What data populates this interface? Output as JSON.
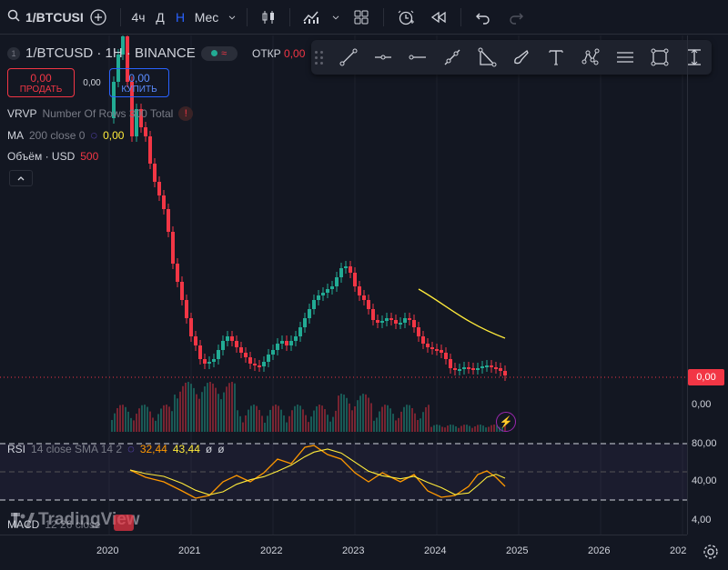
{
  "topbar": {
    "symbol": "1/BTCUSI",
    "intervals": [
      "4ч",
      "Д",
      "Н",
      "Мес"
    ],
    "active_interval": "Н",
    "icons": [
      "search-icon",
      "add-symbol-icon",
      "candles-icon",
      "indicators-icon",
      "chevron-down-icon",
      "templates-icon",
      "alert-icon",
      "replay-icon",
      "undo-icon",
      "redo-icon"
    ]
  },
  "legend": {
    "badge": "1",
    "title": "1/BTCUSD · 1H · BINANCE",
    "ohlc_key": "ОТКР",
    "ohlc_value": "0,00"
  },
  "trade": {
    "sell_price": "0,00",
    "sell_label": "ПРОДАТЬ",
    "spread": "0,00",
    "buy_price": "0,00",
    "buy_label": "КУПИТЬ"
  },
  "indicators": {
    "vrvp_name": "VRVP",
    "vrvp_params": "Number Of Rows 300 Total",
    "ma_name": "MA",
    "ma_params": "200 close 0",
    "ma_value": "0,00",
    "vol_name": "Объём · USD",
    "vol_value": "500"
  },
  "rsi": {
    "name": "RSI",
    "params": "14 close SMA 14 2",
    "value1": "32,44",
    "value2": "43,44",
    "value3": "ø",
    "value4": "ø"
  },
  "macd": {
    "name": "MACD",
    "params": "12 26 close"
  },
  "watermark": "TradingView",
  "price_scale": {
    "current_tag": "0,00",
    "volume_tag": "0,00",
    "vol_label": "0,00",
    "rsi_labels": [
      "80,00",
      "40,00"
    ],
    "macd_label": "4,00"
  },
  "time_scale": [
    "2020",
    "2021",
    "2022",
    "2023",
    "2024",
    "2025",
    "2026",
    "202"
  ],
  "colors": {
    "background": "#131722",
    "up": "#22ab94",
    "down": "#f23645",
    "ma": "#ffeb3b",
    "rsi": "#ff9800",
    "accent": "#2962ff"
  },
  "drawing_tools": [
    "trend-line-icon",
    "horizontal-ray-icon",
    "horizontal-line-icon",
    "cross-line-icon",
    "fib-icon",
    "brush-icon",
    "text-icon",
    "pattern-icon",
    "parallel-channel-icon",
    "rectangle-icon",
    "date-range-icon"
  ],
  "chart_data": {
    "type": "candlestick",
    "note_series": [
      "1/BTCUSD price",
      "MA 200",
      "Volume",
      "RSI 14"
    ]
  }
}
